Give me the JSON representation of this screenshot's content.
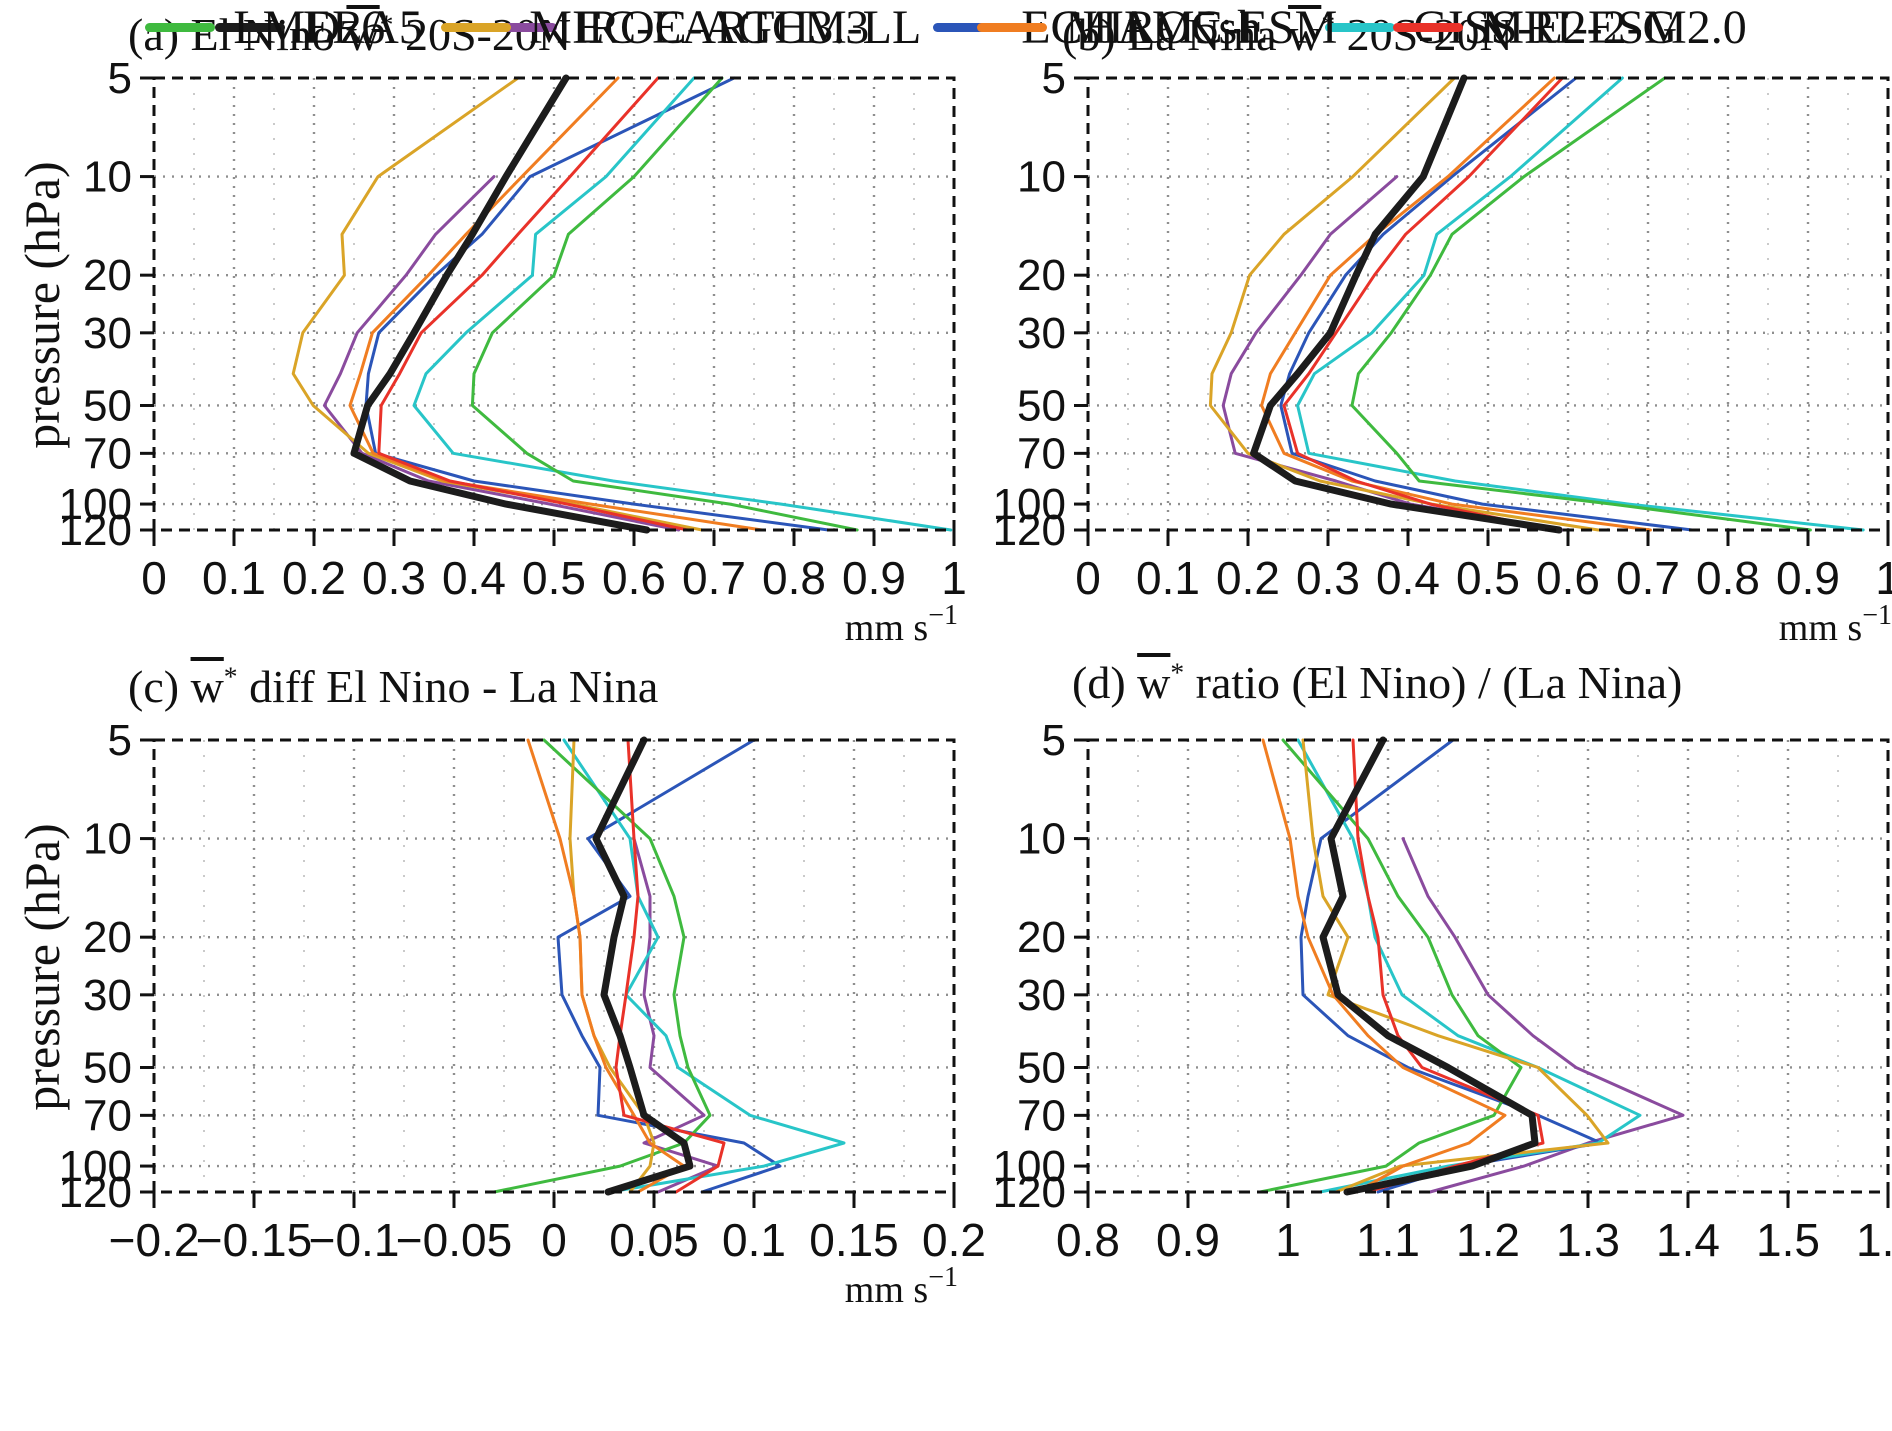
{
  "figure": {
    "y_axis_label": "pressure (hPa)",
    "y_ticks": [
      5,
      10,
      20,
      30,
      50,
      70,
      100,
      120
    ],
    "y_tick_labels": [
      "5",
      "10",
      "20",
      "30",
      "50",
      "70",
      "100",
      "120"
    ],
    "y_range_hPa": [
      5,
      120
    ],
    "unit_base": "mm s",
    "unit_exp": "−1"
  },
  "chart_data": {
    "type": "line",
    "y_scale": "log",
    "grid": true,
    "pressures_hPa": [
      5,
      10,
      15,
      20,
      30,
      40,
      50,
      70,
      85,
      100,
      120
    ],
    "panels": {
      "a": {
        "title_pre": "(a) El Nino",
        "wbar": "w",
        "wsup": "*",
        "title_post": "20S-20N",
        "xmin": 0,
        "xmax": 1,
        "xtick_step": 0.1,
        "minor_step": 0.05,
        "xtick_labels": [
          "0",
          "0.1",
          "0.2",
          "0.3",
          "0.4",
          "0.5",
          "0.6",
          "0.7",
          "0.8",
          "0.9",
          "1"
        ],
        "show_unit": true
      },
      "b": {
        "title_pre": "(b) La Nina",
        "wbar": "w",
        "wsup": "*",
        "title_post": "20S-20N",
        "xmin": 0,
        "xmax": 1,
        "xtick_step": 0.1,
        "minor_step": 0.05,
        "xtick_labels": [
          "0",
          "0.1",
          "0.2",
          "0.3",
          "0.4",
          "0.5",
          "0.6",
          "0.7",
          "0.8",
          "0.9",
          "1"
        ],
        "show_unit": true
      },
      "c": {
        "title_pre": "(c)",
        "wbar": "w",
        "wsup": "*",
        "title_post": "diff  El Nino - La Nina",
        "xmin": -0.2,
        "xmax": 0.2,
        "xtick_step": 0.05,
        "minor_step": 0.025,
        "xtick_labels": [
          "−0.2",
          "−0.15",
          "−0.1",
          "−0.05",
          "0",
          "0.05",
          "0.1",
          "0.15",
          "0.2"
        ],
        "show_unit": true
      },
      "d": {
        "title_pre": "(d)",
        "wbar": "w",
        "wsup": "*",
        "title_post": "ratio (El Nino) / (La Nina)",
        "xmin": 0.8,
        "xmax": 1.6,
        "xtick_step": 0.1,
        "minor_step": 0.05,
        "xtick_labels": [
          "0.8",
          "0.9",
          "1",
          "1.1",
          "1.2",
          "1.3",
          "1.4",
          "1.5",
          "1.6"
        ],
        "show_unit": false
      }
    },
    "series": [
      {
        "name": "ERA5",
        "color": "#1c1c1c",
        "width": 7,
        "a": [
          0.515,
          0.44,
          0.398,
          0.366,
          0.325,
          0.295,
          0.267,
          0.25,
          0.32,
          0.44,
          0.616
        ],
        "b": [
          0.47,
          0.419,
          0.359,
          0.335,
          0.303,
          0.262,
          0.228,
          0.207,
          0.259,
          0.379,
          0.589
        ],
        "c": [
          0.045,
          0.021,
          0.035,
          0.03,
          0.025,
          0.033,
          0.038,
          0.045,
          0.065,
          0.068,
          0.027
        ],
        "d": [
          1.095,
          1.043,
          1.055,
          1.035,
          1.05,
          1.1,
          1.16,
          1.244,
          1.247,
          1.184,
          1.059
        ]
      },
      {
        "name": "EC-EARTH3.3",
        "color": "#8a4b9e",
        "width": 3,
        "a": [
          null,
          0.425,
          0.352,
          0.315,
          0.254,
          0.233,
          0.213,
          0.26,
          0.343,
          0.495,
          0.656
        ],
        "b": [
          null,
          0.386,
          0.303,
          0.266,
          0.21,
          0.179,
          0.169,
          0.184,
          0.31,
          0.403,
          0.593
        ],
        "c": [
          null,
          0.04,
          0.048,
          0.048,
          0.045,
          0.05,
          0.048,
          0.075,
          0.045,
          0.082,
          0.052
        ],
        "d": [
          null,
          1.115,
          1.14,
          1.167,
          1.2,
          1.245,
          1.288,
          1.395,
          1.3,
          1.236,
          1.142
        ]
      },
      {
        "name": "ECHAM5sh",
        "color": "#2b55b8",
        "width": 3,
        "a": [
          0.725,
          0.47,
          0.41,
          0.352,
          0.281,
          0.268,
          0.265,
          0.277,
          0.4,
          0.6,
          0.843
        ],
        "b": [
          0.61,
          0.455,
          0.369,
          0.322,
          0.276,
          0.252,
          0.241,
          0.255,
          0.359,
          0.493,
          0.755
        ],
        "c": [
          0.1,
          0.017,
          0.038,
          0.002,
          0.004,
          0.014,
          0.023,
          0.022,
          0.095,
          0.113,
          0.074
        ],
        "d": [
          1.165,
          1.033,
          1.02,
          1.013,
          1.015,
          1.06,
          1.12,
          1.25,
          1.313,
          1.172,
          1.09
        ]
      },
      {
        "name": "GISS-E2-2-G",
        "color": "#28c5c8",
        "width": 3,
        "a": [
          0.675,
          0.565,
          0.477,
          0.473,
          0.39,
          0.34,
          0.325,
          0.374,
          0.574,
          0.784,
          0.996
        ],
        "b": [
          0.668,
          0.528,
          0.436,
          0.42,
          0.355,
          0.283,
          0.262,
          0.276,
          0.459,
          0.676,
          0.969
        ],
        "c": [
          0.005,
          0.038,
          0.042,
          0.052,
          0.036,
          0.056,
          0.062,
          0.098,
          0.145,
          0.105,
          0.028
        ],
        "d": [
          1.01,
          1.065,
          1.08,
          1.087,
          1.114,
          1.17,
          1.25,
          1.352,
          1.31,
          1.16,
          1.032
        ]
      },
      {
        "name": "LMDz6",
        "color": "#3fba3f",
        "width": 3,
        "a": [
          0.71,
          0.6,
          0.518,
          0.5,
          0.423,
          0.4,
          0.398,
          0.466,
          0.524,
          0.72,
          0.879
        ],
        "b": [
          0.721,
          0.545,
          0.455,
          0.428,
          0.379,
          0.338,
          0.33,
          0.386,
          0.414,
          0.655,
          0.903
        ],
        "c": [
          -0.005,
          0.048,
          0.06,
          0.065,
          0.06,
          0.063,
          0.067,
          0.078,
          0.065,
          0.033,
          -0.03
        ],
        "d": [
          0.995,
          1.08,
          1.11,
          1.14,
          1.164,
          1.19,
          1.233,
          1.206,
          1.131,
          1.098,
          0.972
        ]
      },
      {
        "name": "MIROC-AGCM-LL",
        "color": "#daa427",
        "width": 3,
        "a": [
          0.455,
          0.28,
          0.235,
          0.238,
          0.186,
          0.174,
          0.199,
          0.268,
          0.36,
          0.524,
          0.685
        ],
        "b": [
          0.458,
          0.331,
          0.245,
          0.202,
          0.179,
          0.155,
          0.153,
          0.2,
          0.29,
          0.43,
          0.638
        ],
        "c": [
          0.01,
          0.008,
          0.01,
          0.013,
          0.014,
          0.02,
          0.028,
          0.045,
          0.05,
          0.048,
          0.038
        ],
        "d": [
          1.015,
          1.025,
          1.035,
          1.06,
          1.04,
          1.15,
          1.25,
          1.299,
          1.32,
          1.112,
          1.048
        ]
      },
      {
        "name": "MIROC-ESM",
        "color": "#f07d21",
        "width": 3,
        "a": [
          0.58,
          0.46,
          0.39,
          0.343,
          0.273,
          0.258,
          0.245,
          0.274,
          0.365,
          0.546,
          0.76
        ],
        "b": [
          0.583,
          0.45,
          0.36,
          0.303,
          0.259,
          0.228,
          0.217,
          0.245,
          0.33,
          0.455,
          0.703
        ],
        "c": [
          -0.013,
          0.003,
          0.01,
          0.013,
          0.014,
          0.02,
          0.026,
          0.04,
          0.048,
          0.065,
          0.042
        ],
        "d": [
          0.975,
          1.002,
          1.01,
          1.02,
          1.045,
          1.08,
          1.115,
          1.217,
          1.181,
          1.115,
          1.068
        ]
      },
      {
        "name": "MRI-ESM2.0",
        "color": "#e93229",
        "width": 3,
        "a": [
          0.63,
          0.52,
          0.455,
          0.41,
          0.334,
          0.307,
          0.284,
          0.281,
          0.37,
          0.517,
          0.667
        ],
        "b": [
          0.593,
          0.476,
          0.397,
          0.358,
          0.31,
          0.276,
          0.245,
          0.262,
          0.335,
          0.428,
          0.583
        ],
        "c": [
          0.037,
          0.04,
          0.042,
          0.04,
          0.036,
          0.033,
          0.031,
          0.035,
          0.085,
          0.082,
          0.061
        ],
        "d": [
          1.065,
          1.07,
          1.08,
          1.09,
          1.095,
          1.11,
          1.134,
          1.25,
          1.255,
          1.167,
          1.079
        ]
      }
    ]
  },
  "legend": {
    "rows": [
      [
        "ERA5",
        "EC-EARTH3.3",
        "ECHAM5sh",
        "GISS-E2-2-G"
      ],
      [
        "LMDz6",
        "MIROC-AGCM-LL",
        "MIROC-ESM",
        "MRI-ESM2.0"
      ]
    ]
  }
}
